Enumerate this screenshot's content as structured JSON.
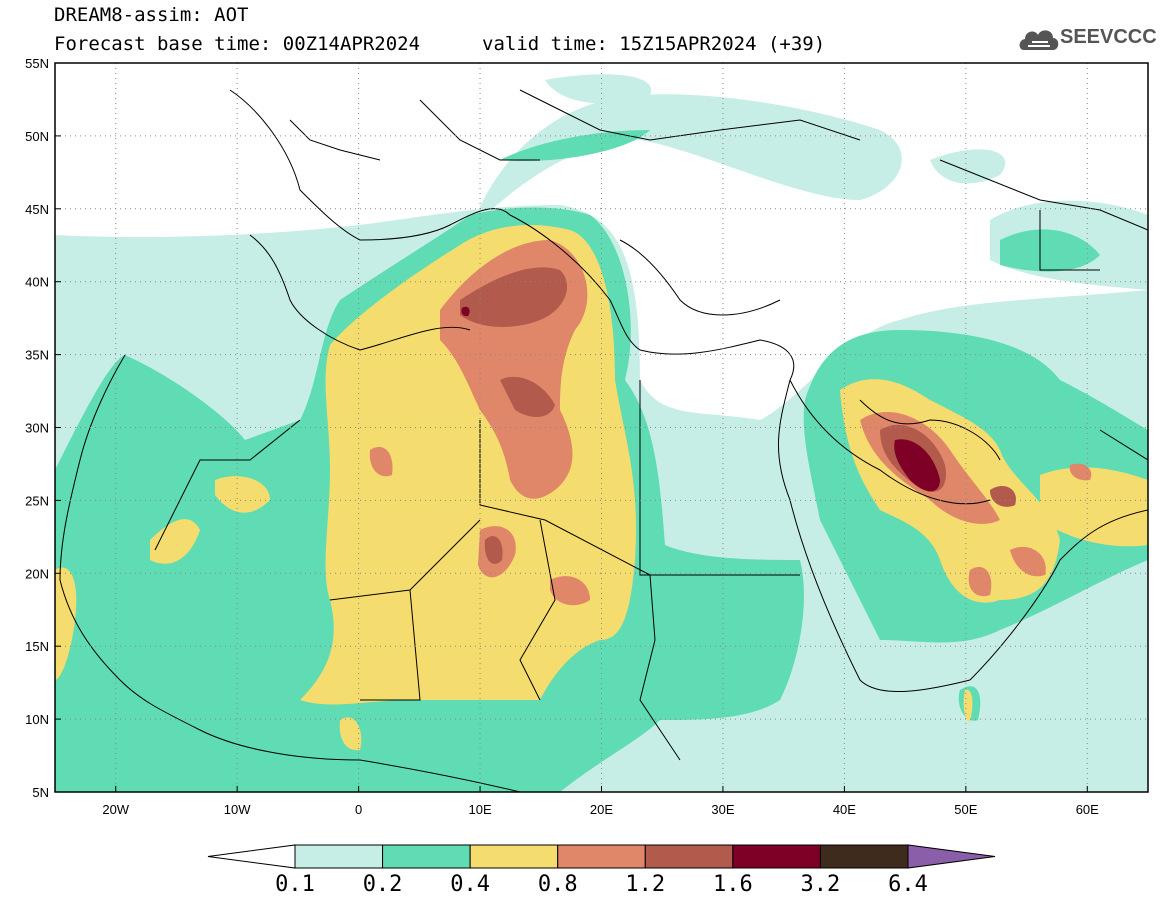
{
  "header": {
    "title": "DREAM8-assim: AOT",
    "base_time": "Forecast base time: 00Z14APR2024",
    "valid_time": "valid time: 15Z15APR2024 (+39)",
    "logo_text": "SEEVCCC"
  },
  "map": {
    "lon_labels": [
      "20W",
      "10W",
      "0",
      "10E",
      "20E",
      "30E",
      "40E",
      "50E",
      "60E"
    ],
    "lat_labels": [
      "55N",
      "50N",
      "45N",
      "40N",
      "35N",
      "30N",
      "25N",
      "20N",
      "15N",
      "10N",
      "5N"
    ],
    "lon_range": [
      -25,
      65
    ],
    "lat_range": [
      5,
      55
    ]
  },
  "colorbar": {
    "ticks": [
      "0.1",
      "0.2",
      "0.4",
      "0.8",
      "1.2",
      "1.6",
      "3.2",
      "6.4"
    ],
    "colors": [
      "#c6eee6",
      "#5fdcb3",
      "#f5dc6e",
      "#e0876a",
      "#b25a4b",
      "#7e0027",
      "#3f2a1e",
      "#8a5ea8"
    ]
  },
  "palette": {
    "c01": "#c6eee6",
    "c02": "#5fdcb3",
    "c04": "#f5dc6e",
    "c08": "#e0876a",
    "c12": "#b25a4b",
    "c16": "#7e0027"
  }
}
